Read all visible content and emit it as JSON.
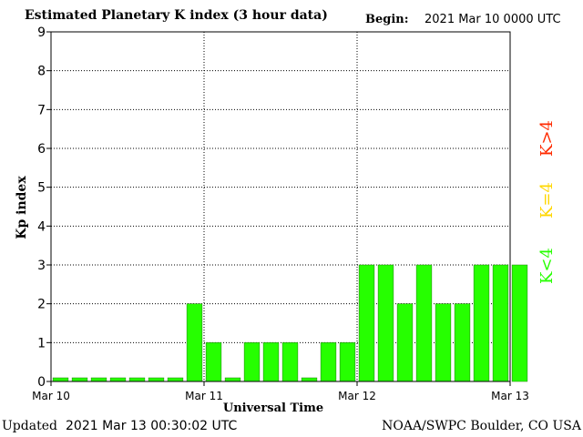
{
  "header": {
    "title": "Estimated Planetary K index (3 hour data)",
    "begin_label": "Begin:",
    "begin_value": "2021 Mar 10 0000 UTC"
  },
  "footer": {
    "updated_label": "Updated",
    "updated_value": "2021 Mar 13 00:30:02 UTC",
    "credit": "NOAA/SWPC Boulder, CO USA"
  },
  "legend": {
    "k_greater": "K>4",
    "k_equal": "K=4",
    "k_less": "K<4",
    "colors": {
      "greater": "#ff2a00",
      "equal": "#ffd700",
      "less": "#26ff00"
    }
  },
  "chart_data": {
    "type": "bar",
    "xlabel": "Universal Time",
    "ylabel": "Kp index",
    "ylim": [
      0,
      9
    ],
    "yticks": [
      0,
      1,
      2,
      3,
      4,
      5,
      6,
      7,
      8,
      9
    ],
    "xtick_labels": [
      "Mar 10",
      "Mar 11",
      "Mar 12",
      "Mar 13"
    ],
    "interval_hours": 3,
    "values": [
      0,
      0,
      0,
      0,
      0,
      0,
      0,
      2,
      1,
      0,
      1,
      1,
      1,
      0,
      1,
      1,
      3,
      3,
      2,
      3,
      2,
      2,
      3,
      3,
      3
    ],
    "bar_color": "#26ff00",
    "grid": true
  }
}
